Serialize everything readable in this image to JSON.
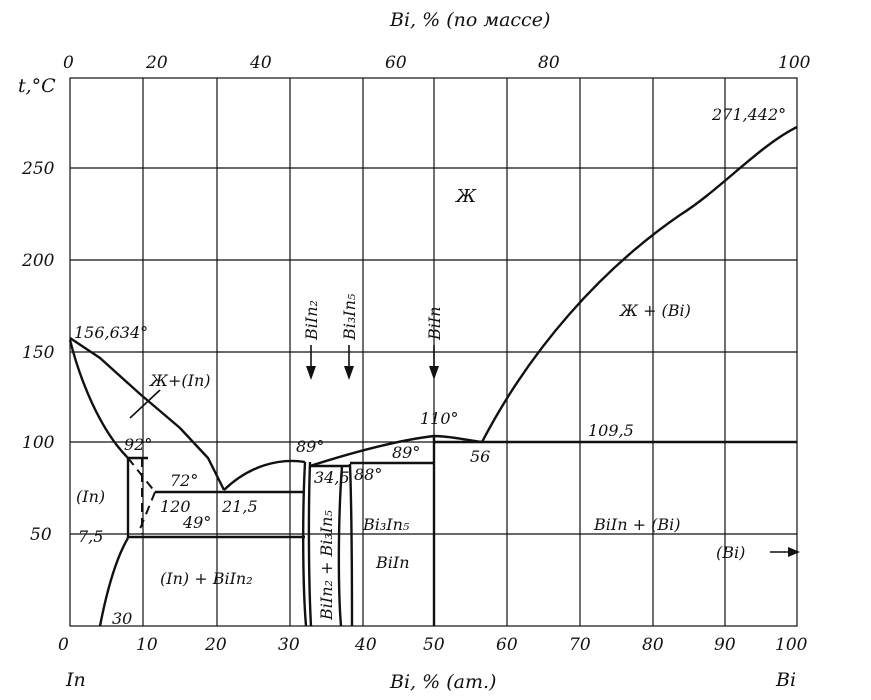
{
  "axes": {
    "top_title": "Bi, % (по массе)",
    "bottom_title": "Bi, % (ат.)",
    "y_title": "t,°C",
    "bottom_left_element": "In",
    "bottom_right_element": "Bi",
    "top_ticks": [
      "0",
      "20",
      "40",
      "60",
      "80",
      "100"
    ],
    "bottom_ticks": [
      "0",
      "10",
      "20",
      "30",
      "40",
      "50",
      "60",
      "70",
      "80",
      "90",
      "100"
    ],
    "y_ticks": [
      "50",
      "100",
      "150",
      "200",
      "250"
    ]
  },
  "regions": {
    "liquid": "Ж",
    "liquid_in": "Ж+(In)",
    "liquid_bi": "Ж + (Bi)",
    "in_solid": "(In)",
    "in_biin2": "(In) + BiIn₂",
    "biin2_bi3in5": "BiIn₂ + Bi₃In₅",
    "bi3in5": "Bi₃In₅",
    "biin": "BiIn",
    "biin_bi": "BiIn + (Bi)",
    "bi_solid": "(Bi)"
  },
  "compounds": {
    "biin2": "BiIn₂",
    "bi3in5": "Bi₃In₅",
    "biin": "BiIn"
  },
  "points": {
    "in_melt": "156,634°",
    "bi_melt": "271,442°",
    "p92": "92°",
    "p72": "72°",
    "p120": "120",
    "p49": "49°",
    "p7_5": "7,5",
    "p30": "30",
    "p21_5": "21,5",
    "p89a": "89°",
    "p34_5": "34,5",
    "p88": "88°",
    "p89b": "89°",
    "p110": "110°",
    "p56": "56",
    "p109_5": "109,5"
  }
}
